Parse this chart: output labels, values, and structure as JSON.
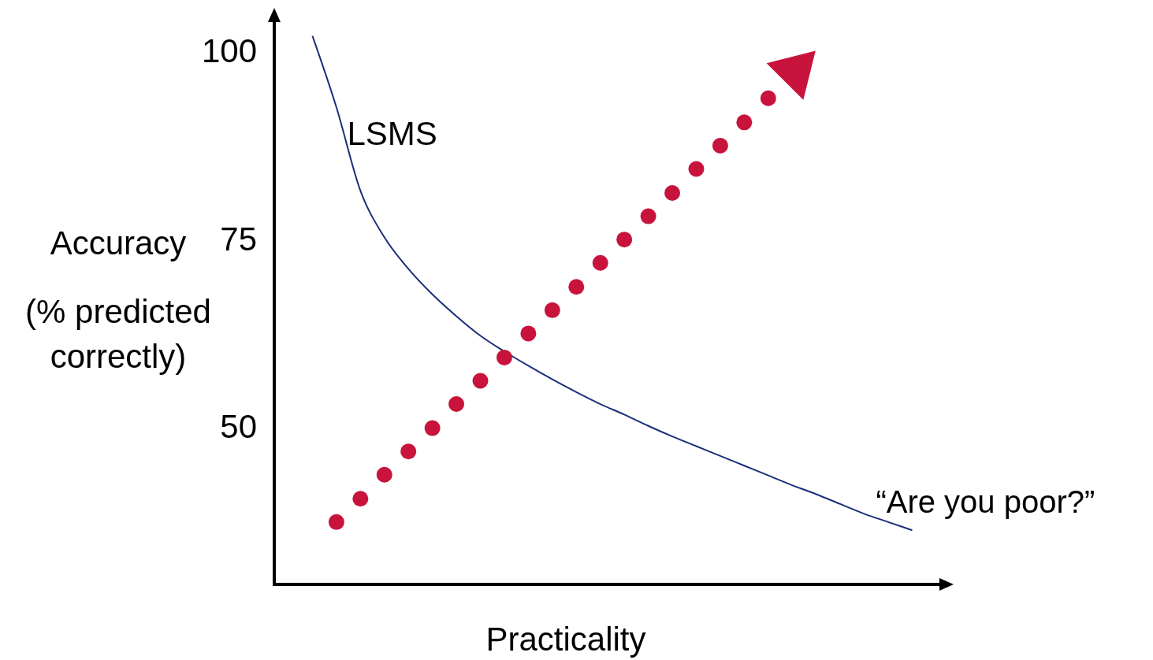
{
  "chart_data": {
    "type": "line",
    "xlabel": "Practicality",
    "ylabel": "Accuracy (% predicted correctly)",
    "categories": [
      null,
      null,
      null,
      null,
      null,
      null,
      null,
      null,
      null,
      null,
      null,
      null,
      null,
      null,
      null,
      null,
      null,
      null,
      null,
      null,
      null,
      null,
      null,
      null,
      null,
      null,
      null,
      null
    ],
    "ylim": [
      29,
      105
    ],
    "yticks": [
      50,
      75,
      100
    ],
    "series": [
      {
        "color": "#1a2f7a",
        "marker": "none",
        "values": [
          null,
          102,
          92.5,
          81.4,
          75.2,
          71.0,
          67.6,
          64.7,
          62.1,
          60.0,
          58.1,
          56.3,
          54.6,
          53.0,
          51.6,
          50.1,
          48.7,
          47.4,
          46.1,
          44.8,
          43.5,
          42.2,
          41.0,
          39.7,
          38.4,
          37.3,
          36.2,
          null
        ]
      },
      {
        "type": "scatter",
        "color": "#c8143c",
        "marker": "circle",
        "values": [
          null,
          null,
          37.3,
          40.4,
          43.6,
          46.7,
          49.8,
          53.0,
          56.1,
          59.2,
          62.4,
          65.5,
          68.6,
          71.8,
          74.9,
          78.0,
          81.1,
          84.3,
          87.4,
          90.5,
          93.7,
          null,
          null,
          null,
          null,
          null,
          null,
          null
        ]
      }
    ],
    "annotations": [
      "LSMS",
      "“Are you poor?”"
    ]
  }
}
